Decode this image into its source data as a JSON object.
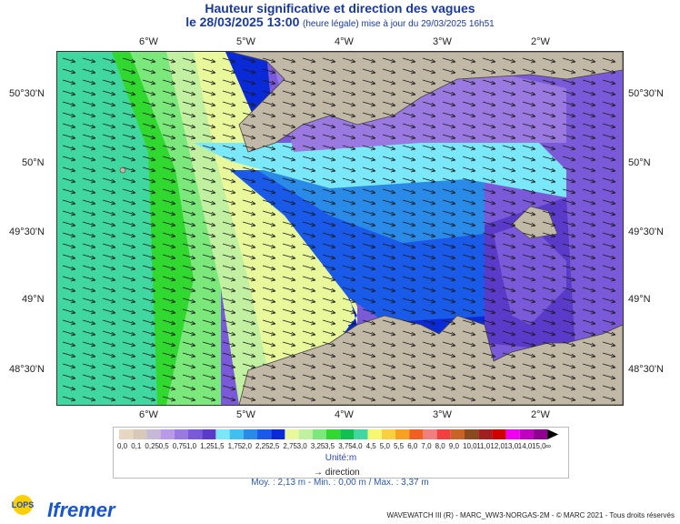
{
  "header": {
    "title": "Hauteur significative et direction des vagues",
    "date_prefix": "le",
    "date": "28/03/2025 13:00",
    "date_note": "(heure légale) mise à jour du 29/03/2025 16h51"
  },
  "axes": {
    "lon_labels": [
      "6°W",
      "5°W",
      "4°W",
      "3°W",
      "2°W"
    ],
    "lat_labels": [
      "50°30'N",
      "50°N",
      "49°30'N",
      "49°N",
      "48°30'N"
    ]
  },
  "legend": {
    "labels": [
      "0,0",
      "0,1",
      "0,25",
      "0,5",
      "0,75",
      "1,0",
      "1,25",
      "1,5",
      "1,75",
      "2,0",
      "2,25",
      "2,5",
      "2,75",
      "3,0",
      "3,25",
      "3,5",
      "3,75",
      "4,0",
      "4,5",
      "5,0",
      "5,5",
      "6,0",
      "7,0",
      "8,0",
      "9,0",
      "10,0",
      "11,0",
      "12,0",
      "13,0",
      "14,0",
      "15,0",
      "∞"
    ],
    "colors": [
      "#e6d6c2",
      "#d8c8b8",
      "#c8b8d8",
      "#b89ae8",
      "#9a7ae0",
      "#7a5ad8",
      "#5a3ac8",
      "#7ae8f8",
      "#40c0f0",
      "#2a8ae8",
      "#1a5ae8",
      "#0a2ad8",
      "#e8f89a",
      "#c0f0a0",
      "#7ae87a",
      "#30d830",
      "#10c050",
      "#40d8a0",
      "#f8f870",
      "#f8d040",
      "#f8a020",
      "#f06020",
      "#f08080",
      "#f04040",
      "#c86428",
      "#8a4a20",
      "#a02020",
      "#d00000",
      "#f000f0",
      "#c000c0",
      "#900090"
    ],
    "unit_label": "Unité:m",
    "direction_label": "direction"
  },
  "stats": {
    "text": "Moy. : 2,13 m   -   Min. : 0,00 m / Max. : 3,37 m"
  },
  "footer": {
    "credits": "WAVEWATCH III (R) - MARC_WW3-NORGAS-2M - © MARC 2021 - Tous droits réservés",
    "logo_lops": "LOPS",
    "logo_ifremer": "Ifremer"
  },
  "map_colors": {
    "land": "#c2b8a6",
    "coast": "#444444"
  }
}
